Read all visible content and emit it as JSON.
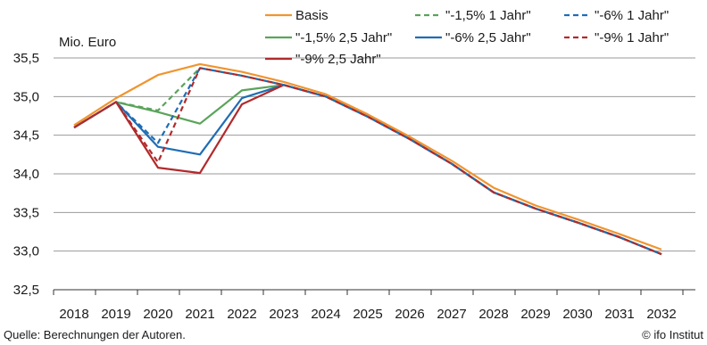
{
  "chart_data": {
    "type": "line",
    "ylabel": "Mio. Euro",
    "ylim": [
      32.5,
      35.5
    ],
    "yticks": [
      "32,5",
      "33,0",
      "33,5",
      "34,0",
      "34,5",
      "35,0",
      "35,5"
    ],
    "ytick_values": [
      32.5,
      33.0,
      33.5,
      34.0,
      34.5,
      35.0,
      35.5
    ],
    "categories": [
      "2018",
      "2019",
      "2020",
      "2021",
      "2022",
      "2023",
      "2024",
      "2025",
      "2026",
      "2027",
      "2028",
      "2029",
      "2030",
      "2031",
      "2032"
    ],
    "grid": "horizontal",
    "legend_position": "top",
    "series": [
      {
        "name": "Basis",
        "color": "#f0952f",
        "dash": "solid",
        "values": [
          34.63,
          34.98,
          35.28,
          35.42,
          35.32,
          35.19,
          35.03,
          34.77,
          34.48,
          34.17,
          33.82,
          33.59,
          33.41,
          33.22,
          33.02
        ]
      },
      {
        "name": "\"-1,5% 1 Jahr\"",
        "color": "#5ba35a",
        "dash": "dashed",
        "values": [
          34.6,
          34.93,
          34.82,
          35.37,
          35.27,
          35.15,
          35.0,
          34.74,
          34.45,
          34.13,
          33.76,
          33.55,
          33.37,
          33.18,
          32.96
        ]
      },
      {
        "name": "\"-6% 1 Jahr\"",
        "color": "#1f6db5",
        "dash": "dashed",
        "values": [
          34.6,
          34.93,
          34.4,
          35.37,
          35.27,
          35.15,
          35.0,
          34.74,
          34.45,
          34.13,
          33.76,
          33.55,
          33.37,
          33.18,
          32.96
        ]
      },
      {
        "name": "\"-1,5% 2,5 Jahr\"",
        "color": "#5ba35a",
        "dash": "solid",
        "values": [
          34.6,
          34.93,
          34.8,
          34.65,
          35.08,
          35.15,
          35.0,
          34.74,
          34.45,
          34.13,
          33.76,
          33.55,
          33.37,
          33.18,
          32.96
        ]
      },
      {
        "name": "\"-6% 2,5 Jahr\"",
        "color": "#1f6db5",
        "dash": "solid",
        "values": [
          34.6,
          34.93,
          34.35,
          34.25,
          34.98,
          35.15,
          35.0,
          34.74,
          34.45,
          34.13,
          33.76,
          33.55,
          33.37,
          33.18,
          32.96
        ]
      },
      {
        "name": "\"-9% 1 Jahr\"",
        "color": "#b12a2c",
        "dash": "dashed",
        "values": [
          34.6,
          34.93,
          34.15,
          35.37,
          35.27,
          35.15,
          35.0,
          34.74,
          34.45,
          34.13,
          33.76,
          33.55,
          33.37,
          33.18,
          32.96
        ]
      },
      {
        "name": "\"-9% 2,5 Jahr\"",
        "color": "#b12a2c",
        "dash": "solid",
        "values": [
          34.6,
          34.93,
          34.08,
          34.01,
          34.9,
          35.15,
          35.0,
          34.74,
          34.45,
          34.13,
          33.76,
          33.55,
          33.37,
          33.18,
          32.96
        ]
      }
    ]
  },
  "footer": {
    "source": "Quelle: Berechnungen der Autoren.",
    "credit": "© ifo Institut"
  }
}
